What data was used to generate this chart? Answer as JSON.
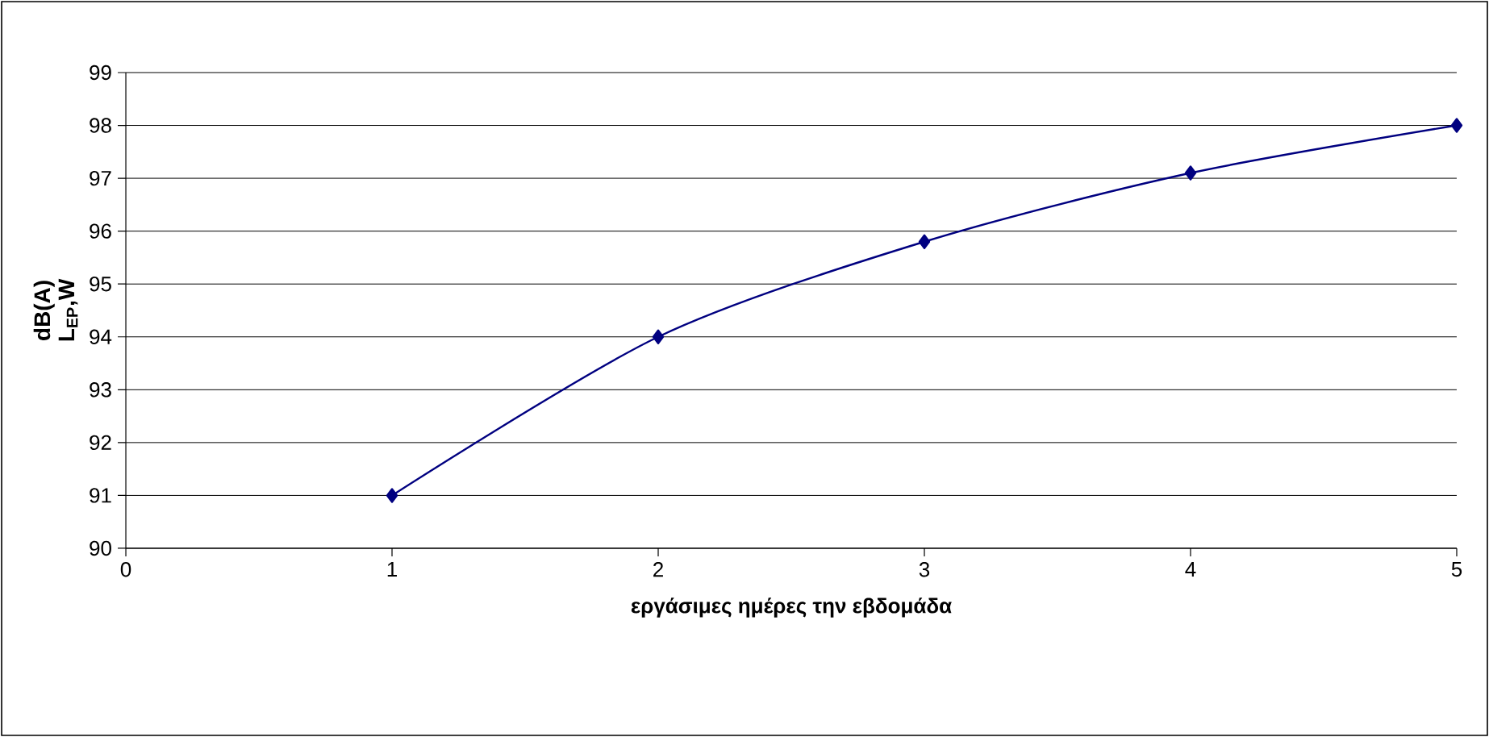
{
  "chart_data": {
    "type": "line",
    "xlabel": "εργάσιμες ημέρες την  εβδομάδα",
    "ylabel": "dB(A) L$_{EP}$,W",
    "x": [
      1,
      2,
      3,
      4,
      5
    ],
    "series": [
      {
        "color": "#000080",
        "values": [
          91,
          94,
          95.8,
          97.1,
          98
        ]
      }
    ],
    "xlim": [
      0,
      5
    ],
    "xticks": [
      0,
      1,
      2,
      3,
      4,
      5
    ],
    "ylim": [
      90,
      99
    ],
    "yticks": [
      90,
      91,
      92,
      93,
      94,
      95,
      96,
      97,
      98,
      99
    ],
    "grid": "y",
    "marker": "diamond",
    "line_style": "solid"
  }
}
